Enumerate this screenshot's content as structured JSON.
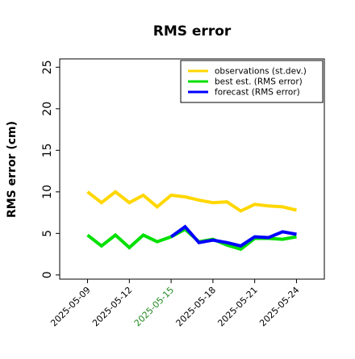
{
  "chart_data": {
    "type": "line",
    "title": "RMS error",
    "xlabel": "",
    "ylabel": "RMS error (cm)",
    "ylim": [
      -0.5,
      26
    ],
    "yticks": [
      0,
      5,
      10,
      15,
      20,
      25
    ],
    "xlim": [
      "2025-05-07",
      "2025-05-26"
    ],
    "x_tick_labels": [
      "2025-05-09",
      "2025-05-12",
      "2025-05-15",
      "2025-05-18",
      "2025-05-21",
      "2025-05-24"
    ],
    "x_tick_colors": [
      "#000000",
      "#000000",
      "#228b22",
      "#000000",
      "#000000",
      "#000000"
    ],
    "grid": false,
    "legend_position": "top-right",
    "x": [
      "2025-05-09",
      "2025-05-10",
      "2025-05-11",
      "2025-05-12",
      "2025-05-13",
      "2025-05-14",
      "2025-05-15",
      "2025-05-16",
      "2025-05-17",
      "2025-05-18",
      "2025-05-19",
      "2025-05-20",
      "2025-05-21",
      "2025-05-22",
      "2025-05-23",
      "2025-05-24"
    ],
    "series": [
      {
        "name": "observations (st.dev.)",
        "color": "#ffd700",
        "values": [
          10.0,
          8.7,
          10.0,
          8.7,
          9.6,
          8.2,
          9.6,
          9.4,
          9.0,
          8.7,
          8.8,
          7.7,
          8.5,
          8.3,
          8.2,
          7.8
        ]
      },
      {
        "name": "best est. (RMS error)",
        "color": "#00e000",
        "values": [
          4.8,
          3.5,
          4.8,
          3.3,
          4.8,
          4.0,
          4.6,
          5.5,
          4.0,
          4.3,
          3.6,
          3.1,
          4.4,
          4.4,
          4.3,
          4.6
        ]
      },
      {
        "name": "forecast (RMS error)",
        "color": "#0000ff",
        "values": [
          null,
          null,
          null,
          null,
          null,
          null,
          4.6,
          5.8,
          3.9,
          4.2,
          3.9,
          3.5,
          4.6,
          4.5,
          5.2,
          4.9
        ]
      }
    ]
  }
}
